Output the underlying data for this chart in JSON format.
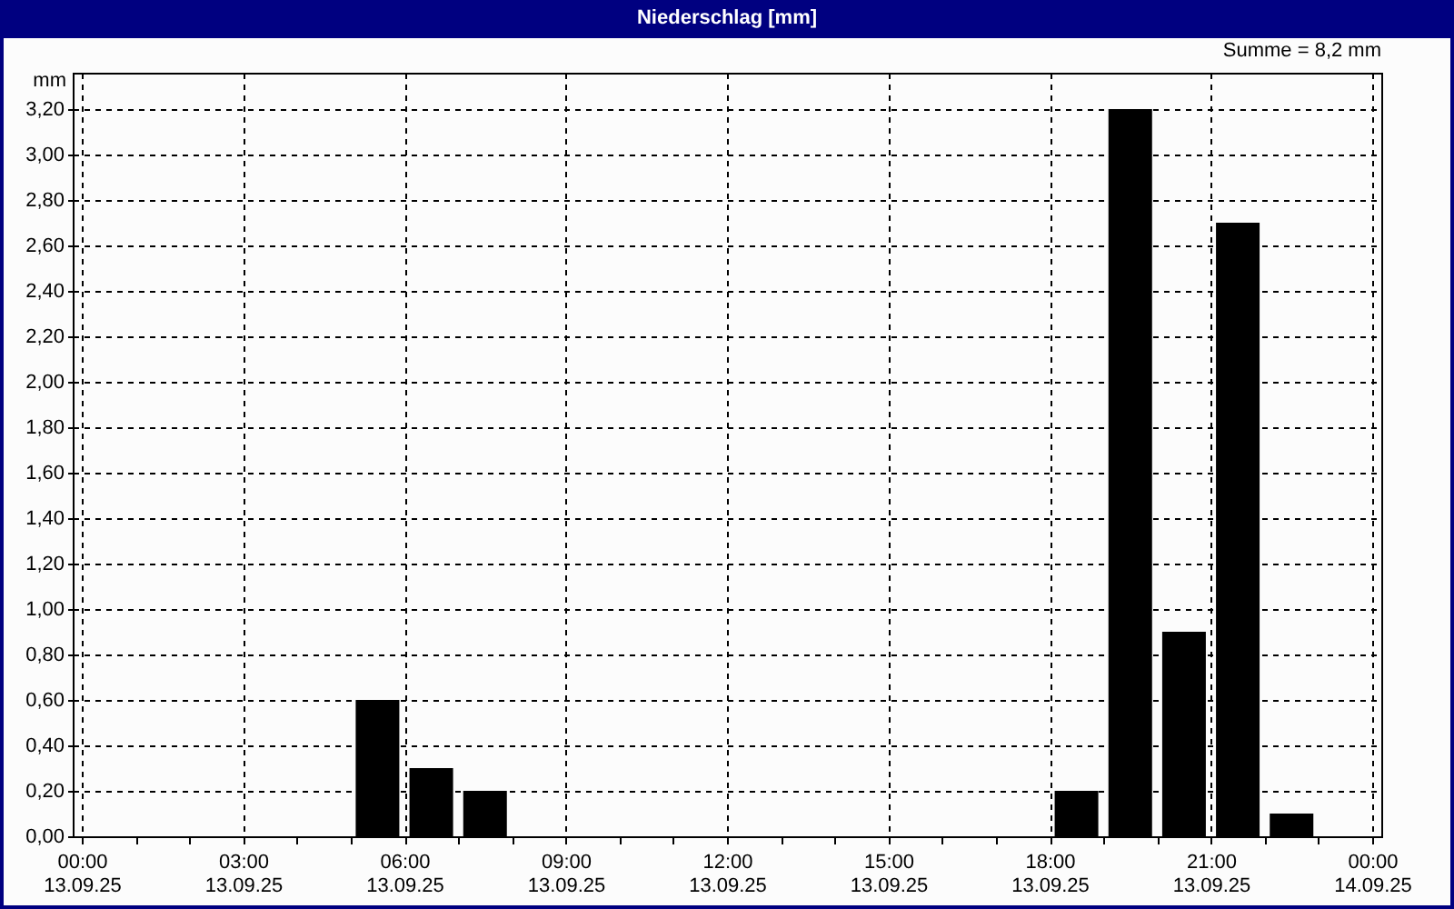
{
  "chart_data": {
    "type": "bar",
    "title": "Niederschlag [mm]",
    "ylabel": "mm",
    "annotations": [
      "Summe = 8,2 mm"
    ],
    "x": [
      "--09-13T05:30",
      "--09-13T06:30",
      "--09-13T07:30",
      "--09-13T18:30",
      "--09-13T19:30",
      "--09-13T20:30",
      "--09-13T21:30",
      "--09-13T22:30"
    ],
    "values": [
      0.6,
      0.3,
      0.2,
      0.2,
      3.2,
      0.9,
      2.7,
      0.1
    ],
    "color": "#000000",
    "xlim": [
      "--09-13T00:00",
      "--09-14T00:00"
    ],
    "xticks": [
      {
        "value": "--09-13T00:00",
        "label": "00:00\n13.09.25"
      },
      {
        "value": "--09-13T01:00",
        "label": null
      },
      {
        "value": "--09-13T02:00",
        "label": null
      },
      {
        "value": "--09-13T03:00",
        "label": "03:00\n13.09.25"
      },
      {
        "value": "--09-13T04:00",
        "label": null
      },
      {
        "value": "--09-13T05:00",
        "label": null
      },
      {
        "value": "--09-13T06:00",
        "label": "06:00\n13.09.25"
      },
      {
        "value": "--09-13T07:00",
        "label": null
      },
      {
        "value": "--09-13T08:00",
        "label": null
      },
      {
        "value": "--09-13T09:00",
        "label": "09:00\n13.09.25"
      },
      {
        "value": "--09-13T10:00",
        "label": null
      },
      {
        "value": "--09-13T11:00",
        "label": null
      },
      {
        "value": "--09-13T12:00",
        "label": "12:00\n13.09.25"
      },
      {
        "value": "--09-13T13:00",
        "label": null
      },
      {
        "value": "--09-13T14:00",
        "label": null
      },
      {
        "value": "--09-13T15:00",
        "label": "15:00\n13.09.25"
      },
      {
        "value": "--09-13T16:00",
        "label": null
      },
      {
        "value": "--09-13T17:00",
        "label": null
      },
      {
        "value": "--09-13T18:00",
        "label": "18:00\n13.09.25"
      },
      {
        "value": "--09-13T19:00",
        "label": null
      },
      {
        "value": "--09-13T20:00",
        "label": null
      },
      {
        "value": "--09-13T21:00",
        "label": "21:00\n13.09.25"
      },
      {
        "value": "--09-13T22:00",
        "label": null
      },
      {
        "value": "--09-13T23:00",
        "label": null
      },
      {
        "value": "--09-14T00:00",
        "label": "00:00\n14.09.25"
      }
    ],
    "ylim": [
      0,
      3.36
    ],
    "yticks": [
      {
        "value": 0,
        "label": "0,00"
      },
      {
        "value": 0.2,
        "label": "0,20"
      },
      {
        "value": 0.4,
        "label": "0,40"
      },
      {
        "value": 0.6,
        "label": "0,60"
      },
      {
        "value": 0.8,
        "label": "0,80"
      },
      {
        "value": 1,
        "label": "1,00"
      },
      {
        "value": 1.2,
        "label": "1,20"
      },
      {
        "value": 1.4,
        "label": "1,40"
      },
      {
        "value": 1.6,
        "label": "1,60"
      },
      {
        "value": 1.8,
        "label": "1,80"
      },
      {
        "value": 2,
        "label": "2,00"
      },
      {
        "value": 2.2,
        "label": "2,20"
      },
      {
        "value": 2.4,
        "label": "2,40"
      },
      {
        "value": 2.6,
        "label": "2,60"
      },
      {
        "value": 2.8,
        "label": "2,80"
      },
      {
        "value": 3,
        "label": "3,00"
      },
      {
        "value": 3.2,
        "label": "3,20"
      }
    ],
    "grid": true
  }
}
